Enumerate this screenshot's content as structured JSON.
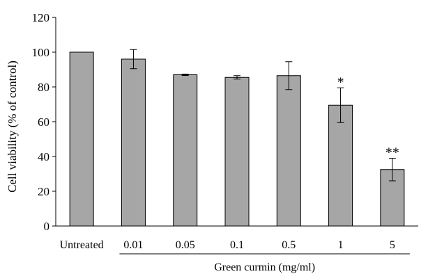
{
  "chart_data": {
    "type": "bar",
    "ylabel": "Cell viability (% of control)",
    "group_label": "Green curmin (mg/ml)",
    "categories": [
      "Untreated",
      "0.01",
      "0.05",
      "0.1",
      "0.5",
      "1",
      "5"
    ],
    "values": [
      100,
      96,
      87,
      85.5,
      86.5,
      69.5,
      32.5
    ],
    "error": [
      0,
      5.5,
      0.4,
      1,
      8,
      10,
      6.5
    ],
    "significance": [
      "",
      "",
      "",
      "",
      "",
      "*",
      "**"
    ],
    "ylim": [
      0,
      120
    ],
    "yticks": [
      0,
      20,
      40,
      60,
      80,
      100,
      120
    ],
    "group_categories": [
      "0.01",
      "0.05",
      "0.1",
      "0.5",
      "1",
      "5"
    ],
    "bar_color": "#a6a6a6",
    "edge_color": "#000000",
    "grid": false,
    "legend": "none"
  }
}
